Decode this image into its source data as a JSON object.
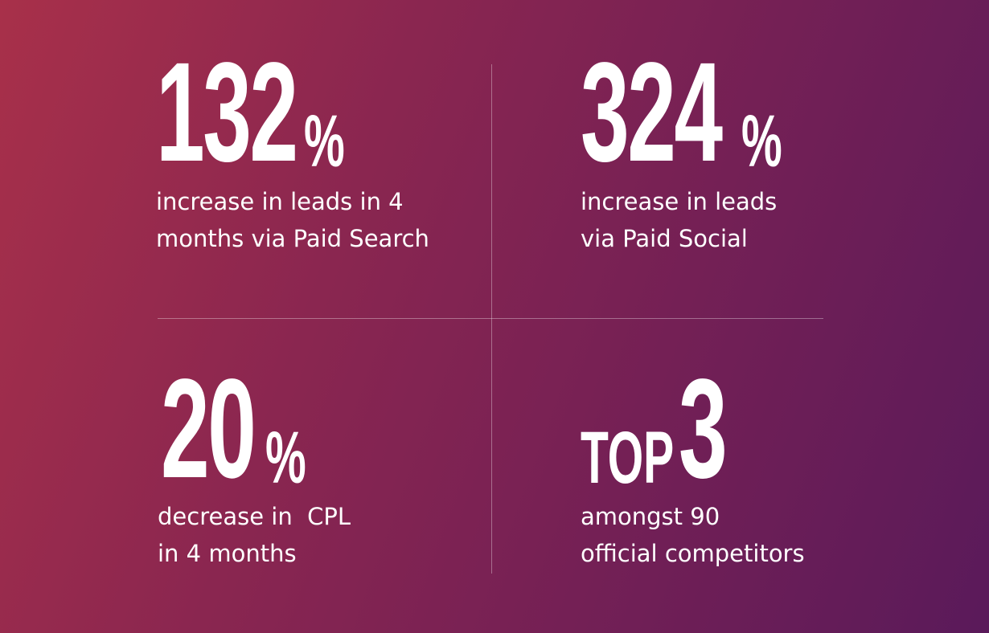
{
  "stats": [
    {
      "value": "132",
      "suffix": "%",
      "line1": "increase in leads in 4",
      "line2": "months via Paid Search"
    },
    {
      "value": "324",
      "suffix": "%",
      "line1": "increase in leads",
      "line2": "via Paid Social"
    },
    {
      "value": "20",
      "suffix": "%",
      "line1": "decrease in  CPL",
      "line2": "in 4 months"
    },
    {
      "prefix": "TOP",
      "value": "3",
      "line1": "amongst 90",
      "line2": "official competitors"
    }
  ],
  "colors": {
    "gradient_start": "#a8304a",
    "gradient_end": "#5a1a5a",
    "text": "#ffffff",
    "divider": "rgba(255,255,255,0.35)"
  }
}
